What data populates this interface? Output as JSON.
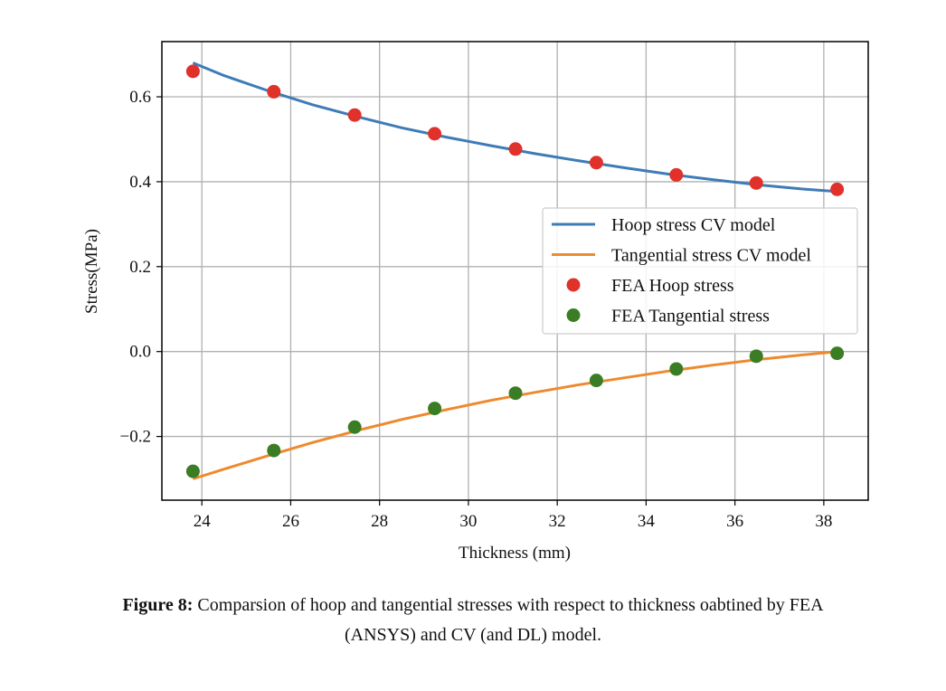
{
  "chart_data": {
    "type": "line",
    "xlabel": "Thickness (mm)",
    "ylabel": "Stress(MPa)",
    "xlim": [
      23.1,
      39.0
    ],
    "ylim": [
      -0.35,
      0.73
    ],
    "xticks": [
      24,
      26,
      28,
      30,
      32,
      34,
      36,
      38
    ],
    "yticks": [
      -0.2,
      0.0,
      0.2,
      0.4,
      0.6
    ],
    "xtick_labels": [
      "24",
      "26",
      "28",
      "30",
      "32",
      "34",
      "36",
      "38"
    ],
    "ytick_labels": [
      "−0.2",
      "0.0",
      "0.2",
      "0.4",
      "0.6"
    ],
    "grid": true,
    "legend_position": "center-right",
    "series": [
      {
        "name": "Hoop stress CV model",
        "kind": "line",
        "color": "#3f7bb6",
        "x": [
          23.8,
          24.5,
          25.5,
          26.5,
          27.5,
          28.5,
          29.5,
          30.5,
          31.5,
          32.5,
          33.5,
          34.5,
          35.5,
          36.5,
          37.5,
          38.3
        ],
        "y": [
          0.68,
          0.65,
          0.614,
          0.581,
          0.553,
          0.527,
          0.505,
          0.485,
          0.466,
          0.449,
          0.433,
          0.418,
          0.405,
          0.393,
          0.383,
          0.377
        ]
      },
      {
        "name": "Tangential stress CV model",
        "kind": "line",
        "color": "#ee8a2e",
        "x": [
          23.8,
          24.5,
          25.5,
          26.5,
          27.5,
          28.5,
          29.5,
          30.5,
          31.5,
          32.5,
          33.5,
          34.5,
          35.5,
          36.5,
          37.5,
          38.3
        ],
        "y": [
          -0.3,
          -0.277,
          -0.245,
          -0.214,
          -0.186,
          -0.16,
          -0.137,
          -0.115,
          -0.096,
          -0.078,
          -0.062,
          -0.046,
          -0.032,
          -0.019,
          -0.008,
          0.0
        ]
      },
      {
        "name": "FEA Hoop stress",
        "kind": "scatter",
        "color": "#e0312b",
        "x": [
          23.8,
          25.62,
          27.44,
          29.24,
          31.06,
          32.88,
          34.68,
          36.48,
          38.3
        ],
        "y": [
          0.66,
          0.612,
          0.557,
          0.513,
          0.477,
          0.445,
          0.416,
          0.397,
          0.382
        ]
      },
      {
        "name": "FEA Tangential stress",
        "kind": "scatter",
        "color": "#3a7d24",
        "x": [
          23.8,
          25.62,
          27.44,
          29.24,
          31.06,
          32.88,
          34.68,
          36.48,
          38.3
        ],
        "y": [
          -0.282,
          -0.233,
          -0.178,
          -0.134,
          -0.098,
          -0.068,
          -0.041,
          -0.011,
          -0.004
        ]
      }
    ]
  },
  "caption": {
    "label": "Figure 8:",
    "text_line1": " Comparsion of hoop and tangential stresses with respect to thickness oabtined by FEA",
    "text_line2": "(ANSYS) and CV (and DL) model."
  }
}
